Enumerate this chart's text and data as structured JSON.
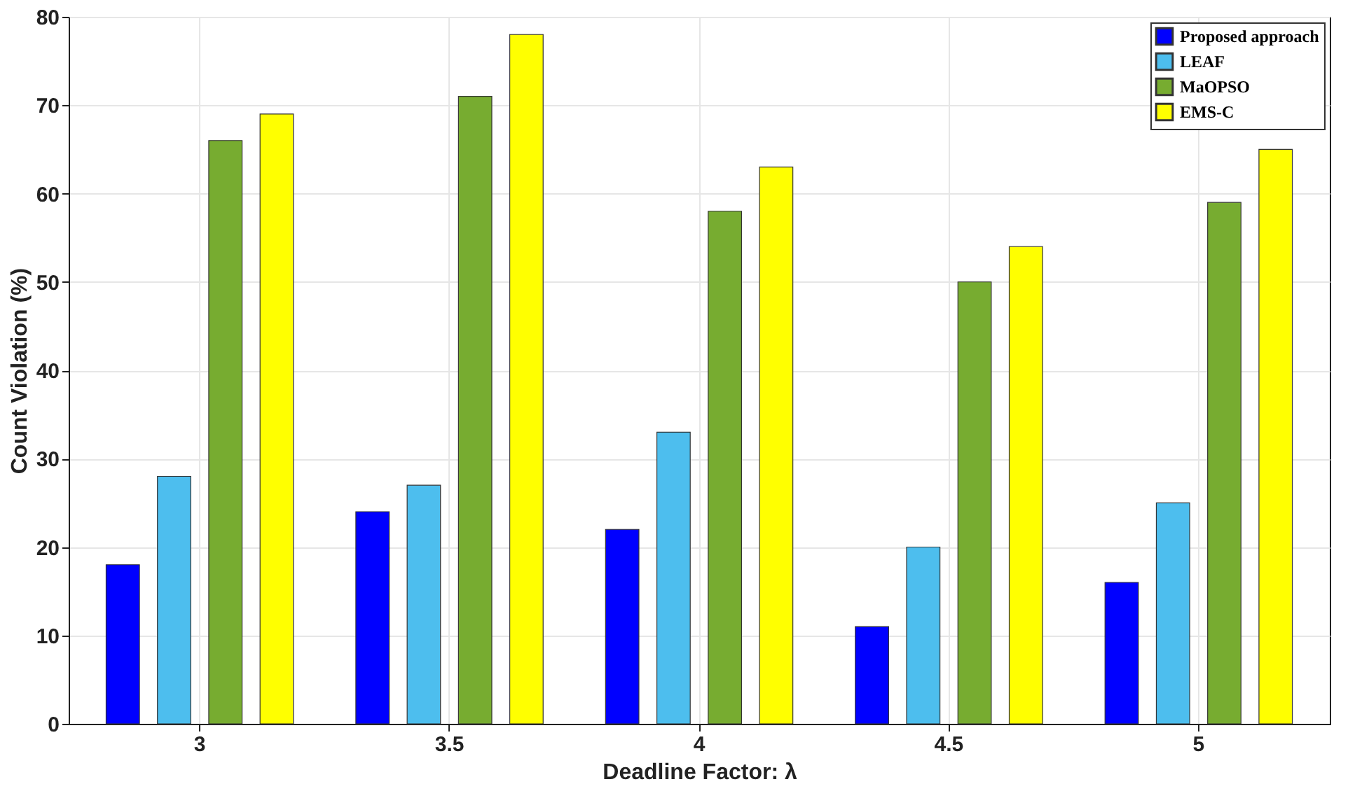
{
  "chart_data": {
    "type": "bar",
    "xlabel": "Deadline Factor: λ",
    "ylabel": "Count Violation (%)",
    "categories": [
      "3",
      "3.5",
      "4",
      "4.5",
      "5"
    ],
    "series": [
      {
        "name": "Proposed approach",
        "color": "#0000ff",
        "values": [
          18,
          24,
          22,
          11,
          16
        ]
      },
      {
        "name": "LEAF",
        "color": "#4dbeee",
        "values": [
          28,
          27,
          33,
          20,
          25
        ]
      },
      {
        "name": "MaOPSO",
        "color": "#77ac30",
        "values": [
          66,
          71,
          58,
          50,
          59
        ]
      },
      {
        "name": "EMS-C",
        "color": "#ffff00",
        "values": [
          69,
          78,
          63,
          54,
          65
        ]
      }
    ],
    "ylim": [
      0,
      80
    ],
    "yticks": [
      0,
      10,
      20,
      30,
      40,
      50,
      60,
      70,
      80
    ],
    "grid": true,
    "legend": "top right"
  }
}
